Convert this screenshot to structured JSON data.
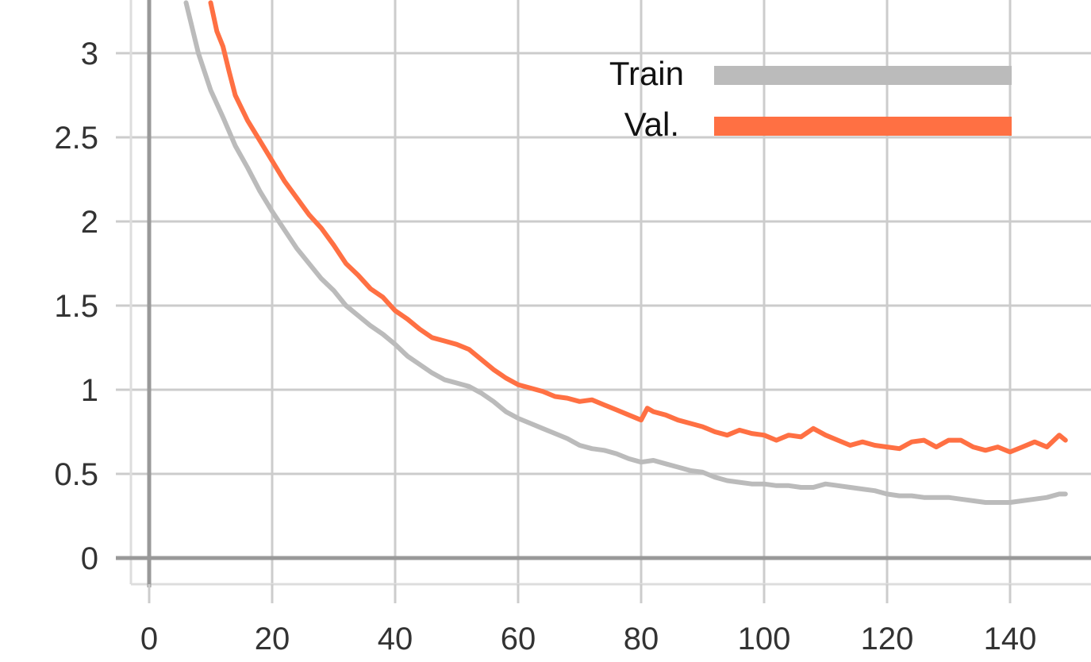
{
  "chart_data": {
    "type": "line",
    "title": "",
    "xlabel": "",
    "ylabel": "",
    "xlim": [
      -3,
      153
    ],
    "ylim": [
      -0.16,
      3.3
    ],
    "grid": true,
    "legend_position": "top-right",
    "x_ticks": [
      0,
      20,
      40,
      60,
      80,
      100,
      120,
      140
    ],
    "y_ticks": [
      0,
      0.5,
      1,
      1.5,
      2,
      2.5,
      3
    ],
    "x_tick_labels": [
      "0",
      "20",
      "40",
      "60",
      "80",
      "100",
      "120",
      "140"
    ],
    "y_tick_labels": [
      "0",
      "0.5",
      "1",
      "1.5",
      "2",
      "2.5",
      "3"
    ],
    "colors": {
      "grid": "#cccccc",
      "axis": "#999999",
      "train": "#bbbbbb",
      "val": "#ff7043"
    },
    "series": [
      {
        "name": "Train",
        "color": "#bbbbbb",
        "x": [
          6,
          8,
          10,
          12,
          14,
          16,
          18,
          20,
          22,
          24,
          26,
          28,
          30,
          32,
          34,
          36,
          38,
          40,
          42,
          44,
          46,
          48,
          50,
          52,
          54,
          56,
          58,
          60,
          62,
          64,
          66,
          68,
          70,
          72,
          74,
          76,
          78,
          80,
          82,
          84,
          86,
          88,
          90,
          92,
          94,
          96,
          98,
          100,
          102,
          104,
          106,
          108,
          110,
          112,
          114,
          116,
          118,
          120,
          122,
          124,
          126,
          128,
          130,
          132,
          134,
          136,
          138,
          140,
          142,
          144,
          146,
          148,
          149
        ],
        "values": [
          3.3,
          3.0,
          2.78,
          2.62,
          2.45,
          2.32,
          2.18,
          2.06,
          1.95,
          1.84,
          1.75,
          1.66,
          1.59,
          1.5,
          1.44,
          1.38,
          1.33,
          1.27,
          1.2,
          1.15,
          1.1,
          1.06,
          1.04,
          1.02,
          0.98,
          0.93,
          0.87,
          0.83,
          0.8,
          0.77,
          0.74,
          0.71,
          0.67,
          0.65,
          0.64,
          0.62,
          0.59,
          0.57,
          0.58,
          0.56,
          0.54,
          0.52,
          0.51,
          0.48,
          0.46,
          0.45,
          0.44,
          0.44,
          0.43,
          0.43,
          0.42,
          0.42,
          0.44,
          0.43,
          0.42,
          0.41,
          0.4,
          0.38,
          0.37,
          0.37,
          0.36,
          0.36,
          0.36,
          0.35,
          0.34,
          0.33,
          0.33,
          0.33,
          0.34,
          0.35,
          0.36,
          0.38,
          0.38
        ]
      },
      {
        "name": "Val.",
        "color": "#ff7043",
        "x": [
          10,
          11,
          12,
          13,
          14,
          16,
          18,
          20,
          22,
          24,
          26,
          28,
          30,
          32,
          34,
          36,
          38,
          40,
          42,
          44,
          46,
          48,
          50,
          52,
          54,
          56,
          58,
          60,
          62,
          64,
          66,
          68,
          70,
          72,
          74,
          76,
          78,
          80,
          81,
          82,
          84,
          86,
          88,
          90,
          92,
          94,
          96,
          98,
          100,
          102,
          104,
          106,
          108,
          110,
          112,
          114,
          116,
          118,
          120,
          122,
          124,
          126,
          128,
          130,
          132,
          134,
          136,
          138,
          140,
          142,
          144,
          146,
          148,
          149
        ],
        "values": [
          3.3,
          3.13,
          3.04,
          2.89,
          2.75,
          2.6,
          2.48,
          2.36,
          2.24,
          2.14,
          2.04,
          1.96,
          1.86,
          1.75,
          1.68,
          1.6,
          1.55,
          1.47,
          1.42,
          1.36,
          1.31,
          1.29,
          1.27,
          1.24,
          1.18,
          1.12,
          1.07,
          1.03,
          1.01,
          0.99,
          0.96,
          0.95,
          0.93,
          0.94,
          0.91,
          0.88,
          0.85,
          0.82,
          0.89,
          0.87,
          0.85,
          0.82,
          0.8,
          0.78,
          0.75,
          0.73,
          0.76,
          0.74,
          0.73,
          0.7,
          0.73,
          0.72,
          0.77,
          0.73,
          0.7,
          0.67,
          0.69,
          0.67,
          0.66,
          0.65,
          0.69,
          0.7,
          0.66,
          0.7,
          0.7,
          0.66,
          0.64,
          0.66,
          0.63,
          0.66,
          0.69,
          0.66,
          0.73,
          0.7
        ]
      }
    ]
  }
}
